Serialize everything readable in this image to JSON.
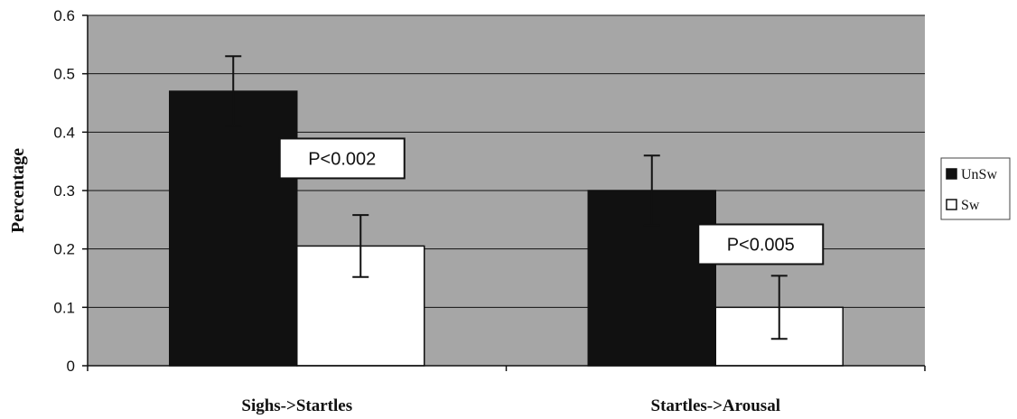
{
  "chart_data": {
    "type": "bar",
    "title": "",
    "xlabel": "",
    "ylabel": "Percentage",
    "categories": [
      "Sighs->Startles",
      "Startles->Arousal"
    ],
    "series": [
      {
        "name": "UnSw",
        "values": [
          0.47,
          0.3
        ],
        "errors": [
          0.06,
          0.06
        ],
        "color": "#111111"
      },
      {
        "name": "Sw",
        "values": [
          0.205,
          0.1
        ],
        "errors": [
          0.053,
          0.054
        ],
        "color": "#ffffff"
      }
    ],
    "ylim": [
      0,
      0.6
    ],
    "yticks": [
      "0",
      "0.1",
      "0.2",
      "0.3",
      "0.4",
      "0.5",
      "0.6"
    ],
    "grid": true,
    "plot_background": "#a6a6a6",
    "legend": {
      "placement": "right"
    },
    "annotations": [
      {
        "text": "P<0.002",
        "category_index": 0,
        "y": 0.355
      },
      {
        "text": "P<0.005",
        "category_index": 1,
        "y": 0.208
      }
    ]
  }
}
